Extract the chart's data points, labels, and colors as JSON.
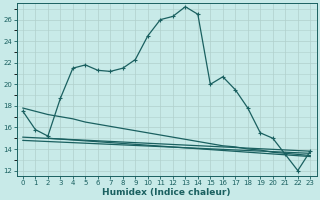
{
  "background_color": "#c8eae8",
  "grid_color": "#b0d0cc",
  "line_color": "#1a6060",
  "xlabel": "Humidex (Indice chaleur)",
  "xlabel_fontsize": 6.5,
  "ylim": [
    11.5,
    27.5
  ],
  "xlim": [
    -0.5,
    23.5
  ],
  "yticks": [
    12,
    14,
    16,
    18,
    20,
    22,
    24,
    26
  ],
  "xticks": [
    0,
    1,
    2,
    3,
    4,
    5,
    6,
    7,
    8,
    9,
    10,
    11,
    12,
    13,
    14,
    15,
    16,
    17,
    18,
    19,
    20,
    21,
    22,
    23
  ],
  "main_x": [
    0,
    1,
    2,
    3,
    4,
    5,
    6,
    7,
    8,
    9,
    10,
    11,
    12,
    13,
    14,
    15,
    16,
    17,
    18,
    19,
    20,
    21,
    22,
    23
  ],
  "main_y": [
    17.5,
    15.8,
    15.2,
    18.7,
    21.5,
    21.8,
    21.3,
    21.2,
    21.5,
    22.3,
    24.5,
    26.0,
    26.3,
    27.2,
    26.5,
    20.0,
    20.7,
    19.5,
    17.8,
    15.5,
    15.0,
    13.5,
    12.0,
    13.8
  ],
  "line2_x": [
    0,
    1,
    2,
    3,
    4,
    5,
    6,
    7,
    8,
    9,
    10,
    11,
    12,
    13,
    14,
    15,
    16,
    17,
    18,
    19,
    20,
    21,
    22,
    23
  ],
  "line2_y": [
    17.8,
    17.5,
    17.2,
    17.0,
    16.8,
    16.5,
    16.3,
    16.1,
    15.9,
    15.7,
    15.5,
    15.3,
    15.1,
    14.9,
    14.7,
    14.5,
    14.3,
    14.2,
    14.0,
    13.9,
    13.7,
    13.6,
    13.5,
    13.4
  ],
  "line3_x": [
    0,
    23
  ],
  "line3_y": [
    15.1,
    13.8
  ],
  "line4_x": [
    0,
    23
  ],
  "line4_y": [
    14.8,
    13.6
  ],
  "line5_x": [
    2,
    23
  ],
  "line5_y": [
    15.0,
    13.3
  ]
}
